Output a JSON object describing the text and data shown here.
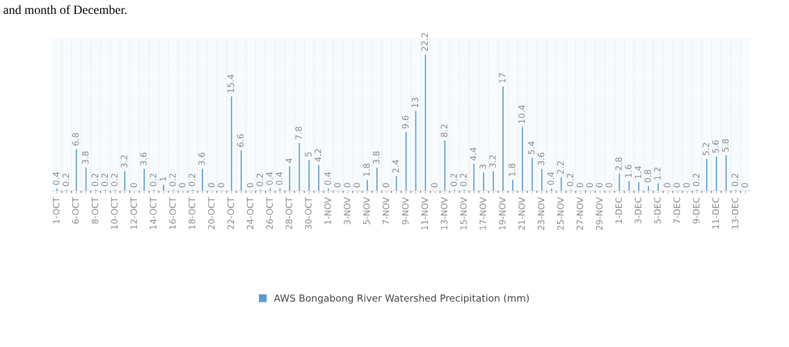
{
  "chart_data": {
    "type": "bar",
    "categories": [
      "1-OCT",
      null,
      "6-OCT",
      null,
      "8-OCT",
      null,
      "10-OCT",
      null,
      "12-OCT",
      null,
      "14-OCT",
      null,
      "16-OCT",
      null,
      "18-OCT",
      null,
      "20-OCT",
      null,
      "22-OCT",
      null,
      "24-OCT",
      null,
      "26-OCT",
      null,
      "28-OCT",
      null,
      "30-OCT",
      null,
      "1-NOV",
      null,
      "3-NOV",
      null,
      "5-NOV",
      null,
      "7-NOV",
      null,
      "9-NOV",
      null,
      "11-NOV",
      null,
      "13-NOV",
      null,
      "15-NOV",
      null,
      "17-NOV",
      null,
      "19-NOV",
      null,
      "21-NOV",
      null,
      "23-NOV",
      null,
      "25-NOV",
      null,
      "27-NOV",
      null,
      "29-NOV",
      null,
      "1-DEC",
      null,
      "3-DEC",
      null,
      "5-DEC",
      null,
      "7-DEC",
      null,
      "9-DEC",
      null,
      "11-DEC",
      null,
      "13-DEC",
      null
    ],
    "series": [
      {
        "name": "AWS Bongabong River Watershed Precipitation (mm)",
        "color": "#5b9bd5",
        "values": [
          0.4,
          0.2,
          6.8,
          3.8,
          0.2,
          0.2,
          0.2,
          3.2,
          0,
          3.6,
          0.2,
          1,
          0.2,
          0,
          0.2,
          3.6,
          0,
          0,
          15.4,
          6.6,
          0,
          0.2,
          0.4,
          0.4,
          4,
          7.8,
          5,
          4.2,
          0.4,
          0,
          0,
          0,
          1.8,
          3.8,
          0,
          2.4,
          9.6,
          13,
          22.2,
          0,
          8.2,
          0.2,
          0.2,
          4.4,
          3,
          3.2,
          17,
          1.8,
          10.4,
          5.4,
          3.6,
          0.4,
          2.2,
          0.2,
          0,
          0,
          0,
          0,
          2.8,
          1.6,
          1.4,
          0.8,
          1.2,
          0,
          0,
          0,
          0.2,
          5.2,
          5.6,
          5.8,
          0.2,
          0
        ]
      }
    ],
    "data_labels": true,
    "grid": "x",
    "legend": "bottom",
    "annotations": [
      "and month of December."
    ]
  }
}
